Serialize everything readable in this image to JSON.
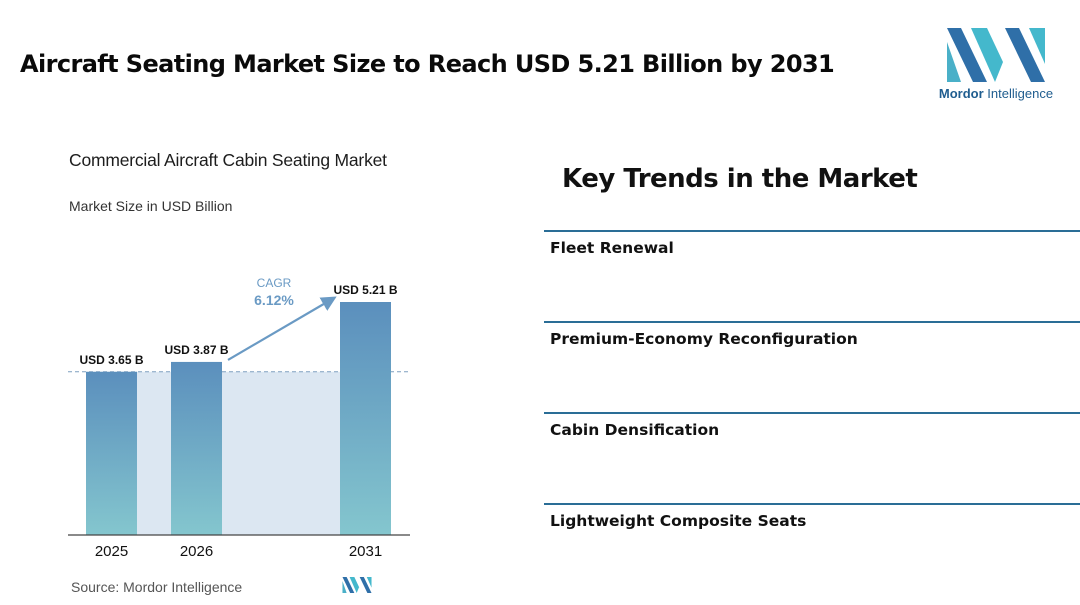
{
  "headline": "Aircraft Seating Market Size to Reach USD 5.21 Billion by 2031",
  "logo": {
    "brand_bold": "Mordor",
    "brand_rest": " Intelligence",
    "icon": "mordor-intelligence-m-logo"
  },
  "colors": {
    "bar_top": "#5b8fbd",
    "bar_bottom": "#84c6ce",
    "band": "#dce7f2",
    "accent": "#2a6d96",
    "cagr": "#6a9ac4"
  },
  "chart_data": {
    "type": "bar",
    "title": "Commercial Aircraft Cabin Seating Market",
    "subtitle": "Market Size in USD Billion",
    "categories": [
      "2025",
      "2026",
      "2031"
    ],
    "values": [
      3.65,
      3.87,
      5.21
    ],
    "value_labels": [
      "USD 3.65 B",
      "USD 3.87 B",
      "USD 5.21 B"
    ],
    "cagr_label": "CAGR",
    "cagr_value": "6.12%",
    "source": "Source:  Mordor Intelligence"
  },
  "trends": {
    "title": "Key Trends in the Market",
    "items": [
      "Fleet Renewal",
      "Premium-Economy Reconfiguration",
      "Cabin Densification",
      "Lightweight Composite Seats"
    ]
  }
}
